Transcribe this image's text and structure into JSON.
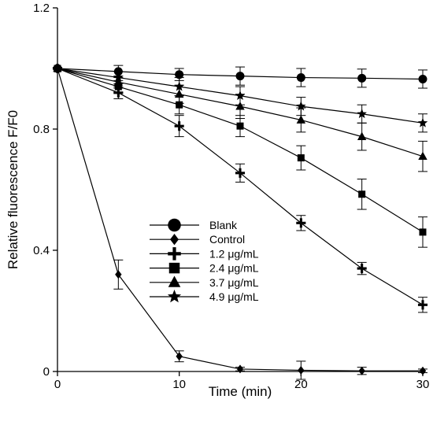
{
  "chart_data": {
    "type": "line",
    "title": "",
    "xlabel": "Time (min)",
    "ylabel": "Relative fluorescence F/F0",
    "xlim": [
      0,
      30
    ],
    "ylim": [
      0,
      1.2
    ],
    "xticks": [
      "0",
      "10",
      "20",
      "30"
    ],
    "yticks": [
      "0",
      "0.4",
      "0.8",
      "1.2"
    ],
    "xtick_values": [
      0,
      10,
      20,
      30
    ],
    "ytick_values": [
      0,
      0.4,
      0.8,
      1.2
    ],
    "grid": false,
    "legend_position": "center",
    "x": [
      0,
      5,
      10,
      15,
      20,
      25,
      30
    ],
    "series": [
      {
        "name": "Blank",
        "marker": "circle",
        "values": [
          1.0,
          0.99,
          0.98,
          0.975,
          0.97,
          0.968,
          0.965
        ],
        "errors": [
          0,
          0.02,
          0.02,
          0.03,
          0.03,
          0.03,
          0.03
        ]
      },
      {
        "name": "Control",
        "marker": "diamond",
        "values": [
          1.0,
          0.32,
          0.05,
          0.008,
          0.004,
          0.002,
          0.002
        ],
        "errors": [
          0,
          0.048,
          0.018,
          0.006,
          0.03,
          0.012,
          0.006
        ]
      },
      {
        "name": "1.2 μg/mL",
        "marker": "plus",
        "values": [
          1.0,
          0.92,
          0.81,
          0.655,
          0.49,
          0.34,
          0.22
        ],
        "errors": [
          0,
          0.02,
          0.035,
          0.03,
          0.025,
          0.02,
          0.025
        ]
      },
      {
        "name": "2.4 μg/mL",
        "marker": "square",
        "values": [
          1.0,
          0.94,
          0.88,
          0.81,
          0.705,
          0.585,
          0.46
        ],
        "errors": [
          0,
          0.02,
          0.03,
          0.035,
          0.04,
          0.05,
          0.05
        ]
      },
      {
        "name": "3.7 μg/mL",
        "marker": "triangle",
        "values": [
          1.0,
          0.955,
          0.915,
          0.875,
          0.83,
          0.775,
          0.71
        ],
        "errors": [
          0,
          0.02,
          0.03,
          0.04,
          0.04,
          0.045,
          0.05
        ]
      },
      {
        "name": "4.9 μg/mL",
        "marker": "star",
        "values": [
          1.0,
          0.97,
          0.94,
          0.91,
          0.875,
          0.85,
          0.82
        ],
        "errors": [
          0,
          0.02,
          0.03,
          0.03,
          0.03,
          0.03,
          0.03
        ]
      }
    ]
  }
}
